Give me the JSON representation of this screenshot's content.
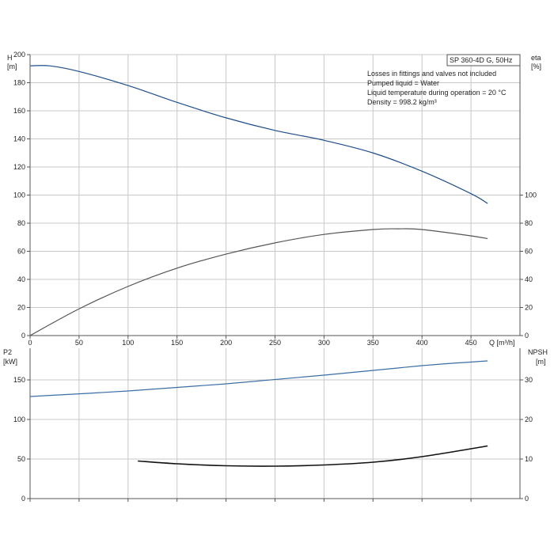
{
  "chart_data": [
    {
      "type": "line",
      "id": "top",
      "x_label": "Q [m³/h]",
      "x_ticks": [
        0,
        50,
        100,
        150,
        200,
        250,
        300,
        350,
        400,
        450
      ],
      "xlim": [
        0,
        500
      ],
      "left_axis": {
        "title_line1": "H",
        "title_line2": "[m]",
        "ticks": [
          0,
          20,
          40,
          60,
          80,
          100,
          120,
          140,
          160,
          180,
          200
        ],
        "lim": [
          0,
          200
        ]
      },
      "right_axis": {
        "title_line1": "eta",
        "title_line2": "[%]",
        "ticks": [
          0,
          20,
          40,
          60,
          80,
          100
        ],
        "lim": [
          0,
          200
        ]
      },
      "series": [
        {
          "axis": "left",
          "color": "#1f4e8a",
          "x": [
            0,
            20,
            50,
            100,
            150,
            200,
            250,
            300,
            350,
            400,
            450,
            467
          ],
          "y": [
            192,
            192,
            188,
            178,
            166,
            155,
            146,
            139,
            130,
            117,
            101,
            94
          ]
        },
        {
          "axis": "right",
          "color": "#555555",
          "x": [
            0,
            50,
            100,
            150,
            200,
            250,
            300,
            350,
            375,
            400,
            450,
            467
          ],
          "y": [
            0,
            19,
            35,
            48,
            58,
            66,
            72,
            75.5,
            76,
            75.5,
            71,
            69
          ]
        }
      ],
      "info_box": {
        "title": "SP 360-4D G, 50Hz"
      },
      "info_lines": [
        "Losses in fittings and valves not included",
        "Pumped liquid = Water",
        "Liquid temperature during operation = 20 °C",
        "Density = 998.2 kg/m³"
      ]
    },
    {
      "type": "line",
      "id": "bottom",
      "xlim": [
        0,
        500
      ],
      "left_axis": {
        "title_line1": "P2",
        "title_line2": "[kW]",
        "ticks": [
          0,
          50,
          100,
          150
        ],
        "lim": [
          0,
          190
        ]
      },
      "right_axis": {
        "title_line1": "NPSH",
        "title_line2": "[m]",
        "ticks": [
          0,
          10,
          20,
          30
        ],
        "lim": [
          0,
          38
        ]
      },
      "series": [
        {
          "axis": "left",
          "color": "#3a6ea5",
          "x": [
            0,
            100,
            200,
            300,
            400,
            467
          ],
          "y": [
            129,
            136,
            145,
            156,
            168,
            174
          ]
        },
        {
          "axis": "right",
          "color": "#111111",
          "x": [
            110,
            150,
            200,
            250,
            300,
            350,
            400,
            467
          ],
          "y": [
            9.5,
            8.8,
            8.3,
            8.2,
            8.5,
            9.2,
            10.6,
            13.3
          ]
        }
      ]
    }
  ]
}
